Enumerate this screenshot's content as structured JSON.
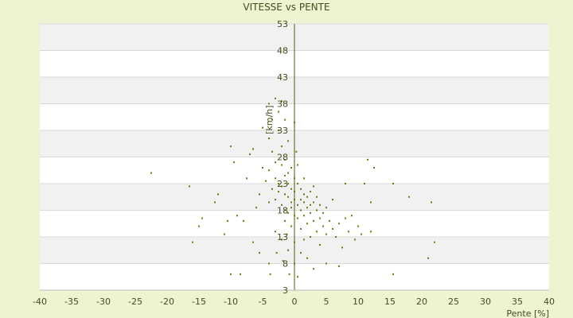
{
  "chart_data": {
    "type": "scatter",
    "title": "VITESSE vs PENTE",
    "xlabel": "Pente [%]",
    "ylabel": "[km/h]",
    "xlim": [
      -40,
      40
    ],
    "ylim": [
      3,
      53
    ],
    "x_ticks": [
      -40,
      -35,
      -30,
      -25,
      -20,
      -15,
      -10,
      -5,
      0,
      5,
      10,
      15,
      20,
      25,
      30,
      35,
      40
    ],
    "y_ticks": [
      3,
      8,
      13,
      18,
      23,
      28,
      33,
      38,
      43,
      48,
      53
    ],
    "grid": true,
    "legend": "none",
    "colors": {
      "background": "#eef3d2",
      "plot_band_light": "#ffffff",
      "plot_band_dark": "#f1f1f1",
      "grid": "#d9d9d9",
      "axis": "#4d5a12",
      "point": "#6b7a12",
      "text": "#4a4a1a"
    },
    "series": [
      {
        "points": [
          [
            -22.5,
            25.0
          ],
          [
            -16.5,
            22.5
          ],
          [
            -16.0,
            12.0
          ],
          [
            -15.0,
            15.0
          ],
          [
            -14.5,
            16.5
          ],
          [
            -12.5,
            19.5
          ],
          [
            -12.0,
            21.0
          ],
          [
            -11.0,
            13.5
          ],
          [
            -10.5,
            16.0
          ],
          [
            -10.0,
            6.0
          ],
          [
            -10.0,
            30.0
          ],
          [
            -9.5,
            27.0
          ],
          [
            -9.0,
            17.0
          ],
          [
            -8.0,
            16.0
          ],
          [
            -8.5,
            6.0
          ],
          [
            -7.5,
            24.0
          ],
          [
            -7.0,
            28.5
          ],
          [
            -6.5,
            29.5
          ],
          [
            -6.0,
            18.5
          ],
          [
            -6.5,
            12.0
          ],
          [
            -5.5,
            21.0
          ],
          [
            -5.5,
            10.0
          ],
          [
            -5.0,
            33.5
          ],
          [
            -5.0,
            26.0
          ],
          [
            -4.5,
            23.5
          ],
          [
            -4.0,
            38.0
          ],
          [
            -4.0,
            31.5
          ],
          [
            -4.0,
            25.5
          ],
          [
            -4.0,
            19.5
          ],
          [
            -4.0,
            8.0
          ],
          [
            -3.8,
            6.0
          ],
          [
            -3.5,
            35.0
          ],
          [
            -3.5,
            29.0
          ],
          [
            -3.5,
            22.0
          ],
          [
            -3.0,
            39.0
          ],
          [
            -3.0,
            27.0
          ],
          [
            -3.0,
            24.0
          ],
          [
            -3.0,
            20.0
          ],
          [
            -3.0,
            14.0
          ],
          [
            -2.8,
            10.0
          ],
          [
            -2.5,
            36.5
          ],
          [
            -2.5,
            33.0
          ],
          [
            -2.5,
            23.0
          ],
          [
            -2.5,
            21.5
          ],
          [
            -2.0,
            38.5
          ],
          [
            -2.0,
            30.0
          ],
          [
            -2.0,
            26.5
          ],
          [
            -2.0,
            22.5
          ],
          [
            -2.0,
            19.0
          ],
          [
            -2.0,
            12.5
          ],
          [
            -1.8,
            8.5
          ],
          [
            -1.5,
            35.0
          ],
          [
            -1.5,
            27.5
          ],
          [
            -1.5,
            24.5
          ],
          [
            -1.5,
            21.0
          ],
          [
            -1.5,
            18.0
          ],
          [
            -1.5,
            16.0
          ],
          [
            -1.2,
            13.5
          ],
          [
            -1.0,
            31.0
          ],
          [
            -1.0,
            25.0
          ],
          [
            -1.0,
            23.0
          ],
          [
            -1.0,
            20.5
          ],
          [
            -1.0,
            17.5
          ],
          [
            -1.0,
            10.5
          ],
          [
            -0.8,
            6.0
          ],
          [
            -0.5,
            26.0
          ],
          [
            -0.5,
            22.0
          ],
          [
            -0.5,
            19.5
          ],
          [
            -0.5,
            18.5
          ],
          [
            -0.5,
            15.0
          ],
          [
            0.0,
            34.5
          ],
          [
            0.0,
            24.0
          ],
          [
            0.0,
            21.5
          ],
          [
            0.0,
            20.0
          ],
          [
            0.0,
            17.0
          ],
          [
            0.0,
            12.0
          ],
          [
            0.0,
            8.0
          ],
          [
            0.3,
            29.0
          ],
          [
            0.5,
            26.5
          ],
          [
            0.5,
            23.0
          ],
          [
            0.5,
            19.0
          ],
          [
            0.5,
            16.5
          ],
          [
            0.5,
            5.5
          ],
          [
            1.0,
            22.0
          ],
          [
            1.0,
            20.0
          ],
          [
            1.0,
            18.0
          ],
          [
            1.0,
            14.5
          ],
          [
            1.0,
            10.0
          ],
          [
            1.5,
            24.0
          ],
          [
            1.5,
            21.0
          ],
          [
            1.5,
            19.5
          ],
          [
            1.5,
            17.0
          ],
          [
            1.5,
            12.5
          ],
          [
            2.0,
            20.5
          ],
          [
            2.0,
            18.5
          ],
          [
            2.0,
            15.5
          ],
          [
            2.0,
            9.0
          ],
          [
            2.5,
            21.5
          ],
          [
            2.5,
            19.0
          ],
          [
            2.5,
            17.5
          ],
          [
            2.5,
            13.0
          ],
          [
            3.0,
            22.5
          ],
          [
            3.0,
            19.5
          ],
          [
            3.0,
            16.0
          ],
          [
            3.0,
            7.0
          ],
          [
            3.5,
            20.5
          ],
          [
            3.5,
            18.0
          ],
          [
            3.5,
            14.0
          ],
          [
            4.0,
            19.0
          ],
          [
            4.0,
            16.5
          ],
          [
            4.0,
            11.5
          ],
          [
            4.5,
            17.5
          ],
          [
            4.5,
            15.0
          ],
          [
            5.0,
            18.5
          ],
          [
            5.0,
            13.5
          ],
          [
            5.0,
            8.0
          ],
          [
            5.5,
            16.0
          ],
          [
            6.0,
            14.5
          ],
          [
            6.0,
            20.0
          ],
          [
            6.5,
            13.0
          ],
          [
            7.0,
            15.5
          ],
          [
            7.0,
            7.5
          ],
          [
            7.5,
            11.0
          ],
          [
            8.0,
            16.5
          ],
          [
            8.0,
            23.0
          ],
          [
            8.5,
            14.0
          ],
          [
            9.0,
            17.0
          ],
          [
            9.5,
            12.5
          ],
          [
            10.0,
            15.0
          ],
          [
            10.5,
            13.5
          ],
          [
            11.0,
            23.0
          ],
          [
            11.5,
            27.5
          ],
          [
            12.0,
            14.0
          ],
          [
            12.0,
            19.5
          ],
          [
            12.5,
            26.0
          ],
          [
            15.5,
            23.0
          ],
          [
            15.5,
            6.0
          ],
          [
            18.0,
            20.5
          ],
          [
            21.0,
            9.0
          ],
          [
            21.5,
            19.5
          ],
          [
            22.0,
            12.0
          ]
        ]
      }
    ]
  }
}
